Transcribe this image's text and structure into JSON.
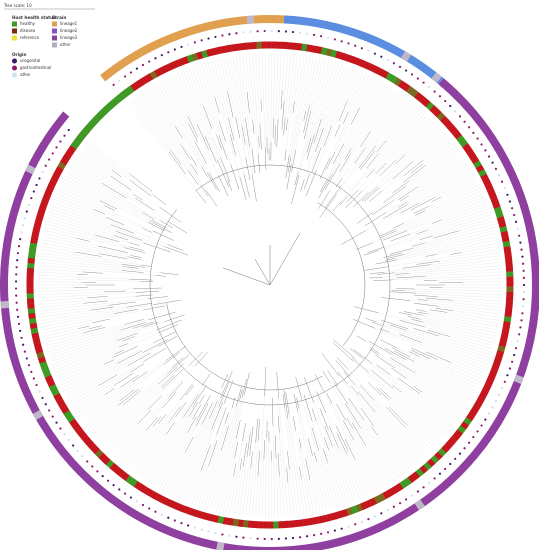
{
  "tree_scale": "Tree scale: 10",
  "legend": {
    "health": {
      "title": "Host health status",
      "items": [
        "healthy",
        "disease",
        "reference"
      ]
    },
    "lineage": {
      "title": "Strain",
      "items": [
        "lineage1",
        "lineage2",
        "lineage3",
        "other"
      ]
    },
    "origin": {
      "title": "Origin",
      "items": [
        "urogenital",
        "gastrointestinal",
        "other"
      ]
    }
  }
}
